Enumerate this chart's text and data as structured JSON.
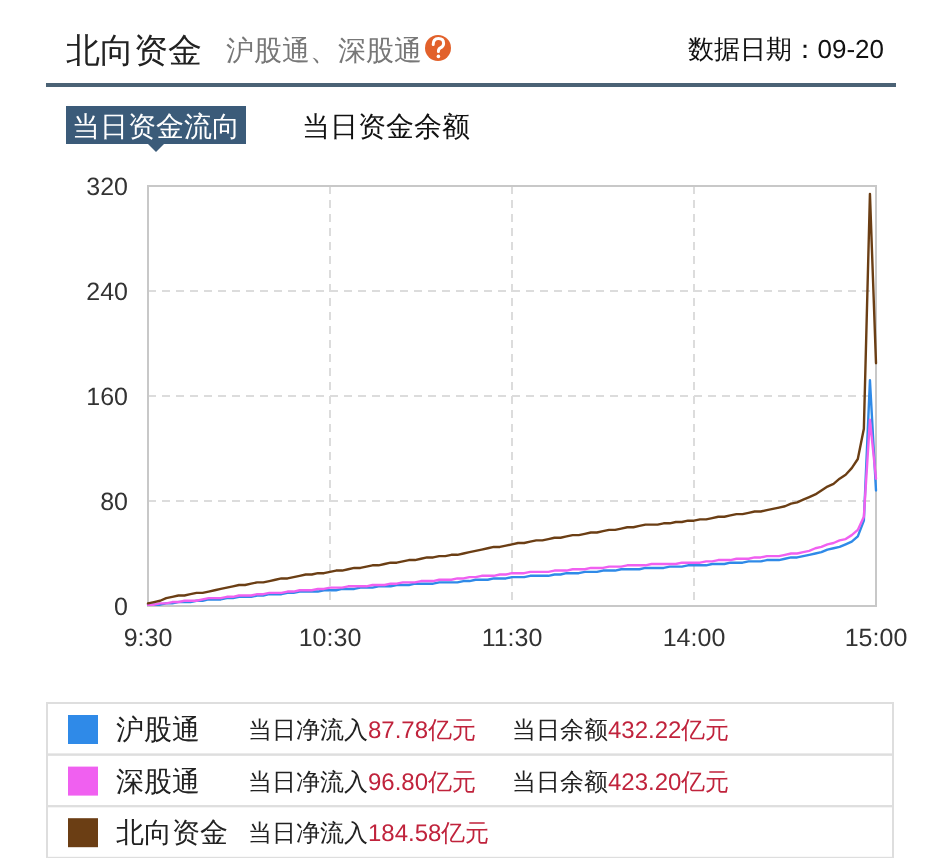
{
  "chart_data": {
    "type": "line",
    "title": "北向资金",
    "subtitle": "沪股通、深股通",
    "annotations": [
      "数据日期：09-20",
      "当日资金流向",
      "当日资金余额",
      "当日净流入87.78亿元",
      "当日余额432.22亿元",
      "当日净流入96.80亿元",
      "当日余额423.20亿元",
      "当日净流入184.58亿元"
    ],
    "categories": [
      "9:30",
      null,
      null,
      null,
      null,
      null,
      null,
      null,
      null,
      null,
      null,
      null,
      null,
      null,
      null,
      null,
      null,
      null,
      null,
      null,
      null,
      null,
      null,
      null,
      null,
      null,
      null,
      null,
      null,
      null,
      "10:30",
      null,
      null,
      null,
      null,
      null,
      null,
      null,
      null,
      null,
      null,
      null,
      null,
      null,
      null,
      null,
      null,
      null,
      null,
      null,
      null,
      null,
      null,
      null,
      null,
      null,
      null,
      null,
      null,
      null,
      "11:30",
      null,
      null,
      null,
      null,
      null,
      null,
      null,
      null,
      null,
      null,
      null,
      null,
      null,
      null,
      null,
      null,
      null,
      null,
      null,
      null,
      null,
      null,
      null,
      null,
      null,
      null,
      null,
      null,
      null,
      "14:00",
      null,
      null,
      null,
      null,
      null,
      null,
      null,
      null,
      null,
      null,
      null,
      null,
      null,
      null,
      null,
      null,
      null,
      null,
      null,
      null,
      null,
      null,
      null,
      null,
      null,
      null,
      null,
      null,
      null,
      "15:00"
    ],
    "ylim": [
      0,
      320
    ],
    "yticks": [
      0,
      80,
      160,
      240,
      320
    ],
    "grid": true,
    "legend": "bottom",
    "series": [
      {
        "name": "沪股通",
        "color": "#2f8ae8",
        "values": [
          1,
          1,
          1,
          2,
          2,
          3,
          3,
          3,
          4,
          4,
          5,
          5,
          5,
          6,
          6,
          7,
          7,
          7,
          8,
          8,
          9,
          9,
          9,
          10,
          10,
          11,
          11,
          11,
          11,
          12,
          12,
          12,
          13,
          13,
          13,
          14,
          14,
          14,
          15,
          15,
          15,
          16,
          16,
          16,
          17,
          17,
          17,
          17,
          18,
          18,
          18,
          18,
          19,
          19,
          20,
          20,
          20,
          21,
          21,
          21,
          22,
          22,
          22,
          23,
          23,
          23,
          23,
          24,
          24,
          25,
          25,
          25,
          26,
          26,
          26,
          27,
          27,
          27,
          28,
          28,
          28,
          28,
          29,
          29,
          29,
          29,
          30,
          30,
          30,
          31,
          31,
          31,
          31,
          32,
          32,
          32,
          33,
          33,
          33,
          34,
          34,
          34,
          35,
          35,
          35,
          36,
          37,
          37,
          38,
          39,
          40,
          41,
          43,
          44,
          45,
          47,
          49,
          53,
          65,
          172,
          88
        ]
      },
      {
        "name": "深股通",
        "color": "#f060f0",
        "values": [
          1,
          1,
          2,
          2,
          3,
          3,
          4,
          4,
          4,
          5,
          6,
          6,
          6,
          7,
          7,
          8,
          8,
          8,
          9,
          9,
          10,
          10,
          10,
          11,
          11,
          12,
          12,
          12,
          13,
          13,
          14,
          14,
          14,
          15,
          15,
          15,
          15,
          16,
          16,
          16,
          17,
          17,
          18,
          18,
          18,
          19,
          19,
          19,
          20,
          20,
          20,
          21,
          21,
          22,
          22,
          23,
          23,
          23,
          24,
          24,
          25,
          25,
          25,
          26,
          26,
          26,
          26,
          27,
          27,
          27,
          28,
          28,
          28,
          29,
          29,
          29,
          30,
          30,
          30,
          31,
          31,
          31,
          31,
          32,
          32,
          32,
          32,
          32,
          33,
          33,
          33,
          33,
          34,
          34,
          35,
          35,
          35,
          36,
          36,
          36,
          37,
          37,
          38,
          38,
          38,
          39,
          40,
          40,
          41,
          42,
          44,
          45,
          47,
          48,
          50,
          51,
          54,
          58,
          68,
          142,
          97
        ]
      },
      {
        "name": "北向资金",
        "color": "#6b3e14",
        "values": [
          2,
          3,
          4,
          6,
          7,
          8,
          8,
          9,
          10,
          10,
          11,
          12,
          13,
          14,
          15,
          16,
          16,
          17,
          18,
          18,
          19,
          20,
          21,
          21,
          22,
          23,
          24,
          24,
          25,
          25,
          26,
          27,
          27,
          28,
          29,
          29,
          30,
          31,
          31,
          32,
          33,
          33,
          34,
          35,
          35,
          36,
          37,
          37,
          38,
          38,
          39,
          39,
          40,
          41,
          42,
          43,
          44,
          45,
          45,
          46,
          47,
          48,
          48,
          49,
          50,
          50,
          51,
          52,
          52,
          53,
          54,
          54,
          55,
          56,
          56,
          57,
          58,
          58,
          59,
          60,
          60,
          61,
          62,
          62,
          62,
          63,
          63,
          64,
          64,
          65,
          65,
          66,
          66,
          67,
          68,
          68,
          69,
          70,
          70,
          71,
          72,
          72,
          73,
          74,
          75,
          76,
          78,
          79,
          81,
          83,
          85,
          88,
          91,
          93,
          97,
          100,
          105,
          112,
          135,
          314,
          185
        ]
      }
    ]
  }
}
